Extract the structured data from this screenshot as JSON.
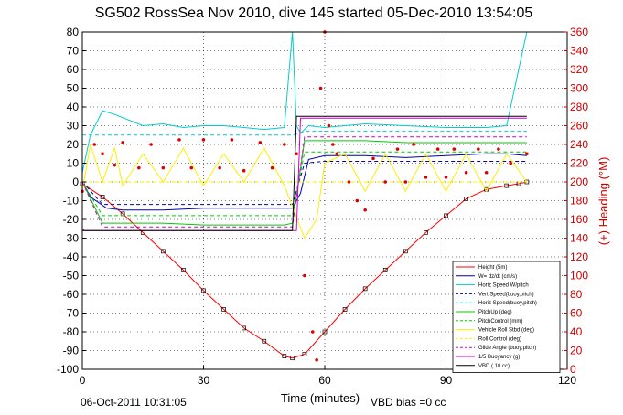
{
  "chart_data": {
    "type": "line",
    "title": "SG502 RossSea Nov 2010, dive 145 started 05-Dec-2010 13:54:05",
    "xlabel": "Time (minutes)",
    "ylabel": "",
    "y2label": "(+) Heading (°M)",
    "xlim": [
      0,
      120
    ],
    "ylim": [
      -100,
      80
    ],
    "y2lim": [
      0,
      360
    ],
    "x_ticks": [
      0,
      30,
      60,
      90,
      120
    ],
    "y_ticks": [
      -100,
      -90,
      -80,
      -70,
      -60,
      -50,
      -40,
      -30,
      -20,
      -10,
      0,
      10,
      20,
      30,
      40,
      50,
      60,
      70,
      80
    ],
    "y2_ticks": [
      0,
      20,
      40,
      60,
      80,
      100,
      120,
      140,
      160,
      180,
      200,
      220,
      240,
      260,
      280,
      300,
      320,
      340,
      360
    ],
    "grid": true,
    "legend_position": "bottom-right",
    "footer_left": "06-Oct-2011 10:31:05",
    "footer_right": "VBD bias =0 cc",
    "series": [
      {
        "name": "Height (5m)",
        "color": "#ff0000",
        "style": "solid",
        "axis": "left",
        "x": [
          0,
          5,
          10,
          15,
          20,
          25,
          30,
          35,
          40,
          45,
          50,
          52,
          55,
          60,
          65,
          70,
          75,
          80,
          85,
          90,
          95,
          100,
          105,
          108,
          110
        ],
        "y": [
          -1,
          -8,
          -17,
          -27,
          -37,
          -47,
          -58,
          -68,
          -78,
          -85,
          -93,
          -94,
          -92,
          -80,
          -68,
          -57,
          -47,
          -37,
          -27,
          -18,
          -9,
          -4,
          -2,
          -1,
          0
        ]
      },
      {
        "name": "W= dz/dt (cm/s)",
        "color": "#0000aa",
        "style": "solid",
        "axis": "left",
        "x": [
          0,
          2,
          6,
          10,
          20,
          30,
          40,
          50,
          52,
          54,
          56,
          60,
          70,
          80,
          90,
          100,
          105,
          110
        ],
        "y": [
          0,
          -8,
          -14,
          -15,
          -15,
          -14,
          -14,
          -14,
          -14,
          -6,
          12,
          14,
          14,
          13,
          14,
          15,
          15,
          14
        ]
      },
      {
        "name": "Horiz Speed W/pitch",
        "color": "#00cccc",
        "style": "solid",
        "axis": "left",
        "x": [
          0,
          2,
          5,
          8,
          15,
          20,
          25,
          30,
          35,
          40,
          45,
          50,
          52,
          53,
          54,
          56,
          60,
          70,
          80,
          90,
          100,
          105,
          110
        ],
        "y": [
          5,
          25,
          38,
          36,
          30,
          31,
          29,
          30,
          30,
          29,
          28,
          29,
          80,
          30,
          26,
          30,
          29,
          31,
          30,
          29,
          29,
          30,
          80
        ]
      },
      {
        "name": "Vert Speed(buoy,pitch)",
        "color": "#0000aa",
        "style": "dashed",
        "axis": "left",
        "x": [
          0,
          5,
          10,
          20,
          30,
          40,
          50,
          52,
          55,
          60,
          70,
          80,
          90,
          100,
          110
        ],
        "y": [
          0,
          -12,
          -12,
          -12,
          -12,
          -12,
          -12,
          -12,
          10,
          11,
          11,
          11,
          11,
          11,
          11
        ]
      },
      {
        "name": "Horiz Speed(buoy,pitch)",
        "color": "#00cccc",
        "style": "dashed",
        "axis": "left",
        "x": [
          0,
          5,
          10,
          20,
          30,
          40,
          50,
          52,
          55,
          60,
          70,
          80,
          90,
          100,
          110
        ],
        "y": [
          25,
          25,
          25,
          25,
          25,
          25,
          25,
          25,
          27,
          27,
          27,
          27,
          27,
          27,
          27
        ]
      },
      {
        "name": "PitchUp (deg)",
        "color": "#00cc00",
        "style": "solid",
        "axis": "left",
        "x": [
          0,
          5,
          10,
          20,
          30,
          40,
          50,
          52,
          55,
          60,
          70,
          80,
          90,
          100,
          110
        ],
        "y": [
          0,
          -22,
          -22,
          -22,
          -23,
          -23,
          -23,
          -22,
          22,
          22,
          22,
          21,
          21,
          21,
          21
        ]
      },
      {
        "name": "PitchControl (mm)",
        "color": "#00cc00",
        "style": "dashed",
        "axis": "left",
        "x": [
          0,
          5,
          10,
          20,
          30,
          40,
          50,
          52,
          55,
          60,
          70,
          80,
          90,
          100,
          110
        ],
        "y": [
          0,
          -18,
          -18,
          -18,
          -18,
          -18,
          -18,
          -18,
          16,
          16,
          16,
          16,
          16,
          16,
          16
        ]
      },
      {
        "name": "Vehicle Roll Stbd (deg)",
        "color": "#ffee00",
        "style": "solid",
        "axis": "left",
        "x": [
          0,
          2,
          5,
          8,
          10,
          15,
          20,
          25,
          30,
          35,
          40,
          45,
          50,
          55,
          58,
          60,
          65,
          70,
          75,
          80,
          85,
          90,
          95,
          100,
          105,
          110
        ],
        "y": [
          -5,
          20,
          0,
          18,
          -2,
          15,
          0,
          18,
          -2,
          15,
          0,
          18,
          -2,
          -30,
          -20,
          10,
          15,
          -5,
          15,
          -5,
          15,
          -5,
          15,
          -5,
          15,
          0
        ]
      },
      {
        "name": "Roll Control (deg)",
        "color": "#ffee00",
        "style": "dashed",
        "axis": "left",
        "x": [
          0,
          10,
          20,
          30,
          40,
          50,
          55,
          60,
          70,
          80,
          90,
          100,
          110
        ],
        "y": [
          0,
          0,
          0,
          0,
          0,
          0,
          0,
          0,
          0,
          0,
          0,
          0,
          0
        ]
      },
      {
        "name": "Glide Angle (buoy,pitch)",
        "color": "#cc00cc",
        "style": "dashed",
        "axis": "left",
        "x": [
          0,
          5,
          10,
          20,
          30,
          40,
          50,
          52,
          55,
          60,
          70,
          80,
          90,
          100,
          110
        ],
        "y": [
          0,
          -24,
          -24,
          -24,
          -24,
          -24,
          -24,
          -24,
          24,
          24,
          24,
          24,
          24,
          24,
          24
        ]
      },
      {
        "name": "1/5 Buoyancy (g)",
        "color": "#cc00cc",
        "style": "solid",
        "axis": "left",
        "x": [
          0,
          0.5,
          52,
          53,
          54,
          110
        ],
        "y": [
          -25,
          -26,
          -26,
          -26,
          34,
          34
        ]
      },
      {
        "name": "VBD ( 10 cc)",
        "color": "#000000",
        "style": "solid",
        "axis": "left",
        "x": [
          0,
          1,
          52,
          53,
          110
        ],
        "y": [
          -26,
          -26,
          -26,
          35,
          35
        ]
      },
      {
        "name": "Heading",
        "color": "#dd0000",
        "style": "points",
        "axis": "right",
        "x": [
          0,
          3,
          5,
          8,
          10,
          14,
          17,
          20,
          24,
          27,
          30,
          34,
          37,
          40,
          44,
          47,
          50,
          53,
          55,
          57,
          58,
          59,
          60,
          61,
          62,
          63,
          66,
          68,
          70,
          72,
          75,
          78,
          80,
          82,
          85,
          88,
          90,
          92,
          95,
          98,
          100,
          103,
          106,
          110
        ],
        "y": [
          190,
          240,
          230,
          218,
          242,
          215,
          240,
          215,
          245,
          215,
          245,
          215,
          245,
          212,
          242,
          215,
          240,
          230,
          100,
          40,
          10,
          300,
          360,
          260,
          240,
          230,
          200,
          180,
          170,
          225,
          200,
          235,
          200,
          240,
          205,
          235,
          205,
          235,
          210,
          235,
          210,
          235,
          220,
          230
        ]
      }
    ]
  }
}
